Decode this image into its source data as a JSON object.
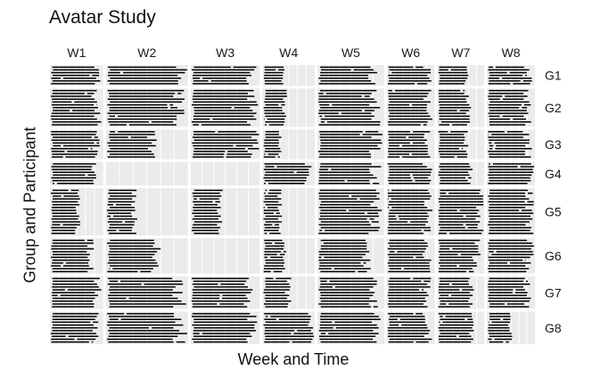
{
  "chart_data": {
    "type": "facet-timeline",
    "title": "Avatar Study",
    "xlabel": "Week and Time",
    "ylabel": "Group and Participant",
    "columns": [
      "W1",
      "W2",
      "W3",
      "W4",
      "W5",
      "W6",
      "W7",
      "W8"
    ],
    "rows": [
      "G1",
      "G2",
      "G3",
      "G4",
      "G5",
      "G6",
      "G7",
      "G8"
    ],
    "grid": true,
    "panel_background": "#ebebeb",
    "line_color": "#000000",
    "lines_per_group": [
      7,
      13,
      10,
      8,
      16,
      12,
      11,
      11
    ],
    "coverage": [
      [
        0.92,
        0.97,
        0.96,
        0.4,
        0.88,
        0.9,
        0.68,
        0.9
      ],
      [
        0.92,
        0.97,
        0.96,
        0.42,
        0.93,
        0.9,
        0.68,
        0.9
      ],
      [
        0.92,
        0.58,
        0.96,
        0.32,
        0.95,
        0.9,
        0.64,
        0.9
      ],
      [
        0.92,
        0.0,
        0.0,
        0.9,
        0.93,
        0.9,
        0.72,
        0.98
      ],
      [
        0.55,
        0.35,
        0.42,
        0.33,
        0.93,
        0.92,
        0.95,
        0.95
      ],
      [
        0.8,
        0.62,
        0.0,
        0.42,
        0.8,
        0.9,
        0.88,
        0.95
      ],
      [
        0.92,
        0.97,
        0.92,
        0.5,
        0.88,
        0.9,
        0.75,
        0.9
      ],
      [
        0.92,
        0.97,
        0.96,
        0.96,
        0.95,
        0.9,
        0.75,
        0.5
      ]
    ],
    "column_weights": [
      1,
      1.54,
      1.3,
      0.98,
      1.25,
      0.9,
      0.88,
      0.9
    ]
  }
}
